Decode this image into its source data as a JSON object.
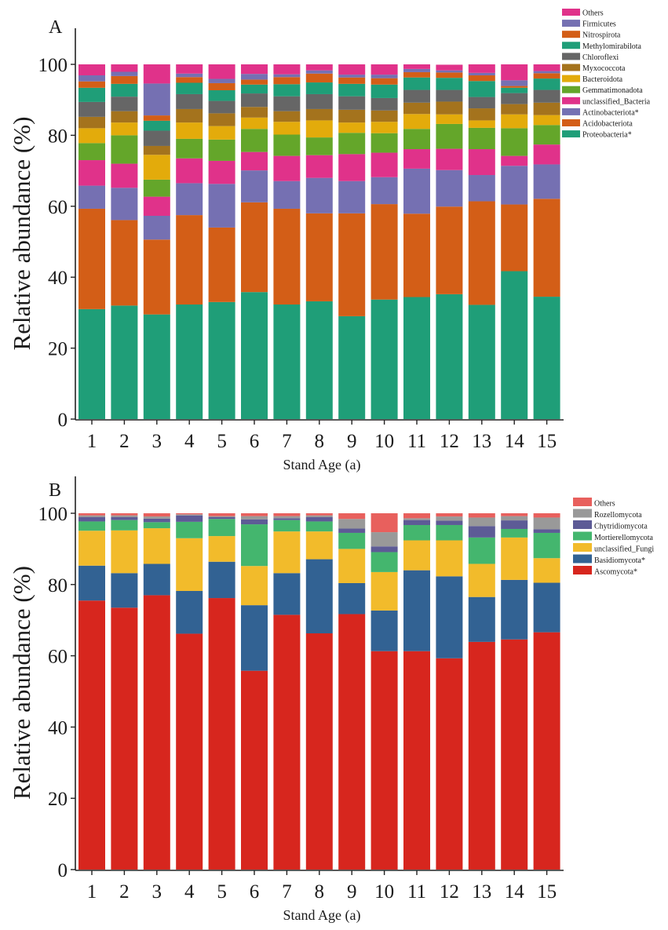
{
  "figure": {
    "panel_a_letter": "A",
    "panel_b_letter": "B"
  },
  "chart_data": [
    {
      "type": "bar",
      "stacked": true,
      "panel": "A",
      "title": "",
      "xlabel": "Stand Age (a)",
      "ylabel": "Relative abundance (%)",
      "ylim": [
        0,
        100
      ],
      "yticks": [
        0,
        20,
        40,
        60,
        80,
        100
      ],
      "grid": false,
      "legend_position": "top-right",
      "categories": [
        "1",
        "2",
        "3",
        "4",
        "5",
        "6",
        "7",
        "8",
        "9",
        "10",
        "11",
        "12",
        "13",
        "14",
        "15"
      ],
      "series": [
        {
          "name": "Proteobacteria*",
          "color": "#1f9e78",
          "values": [
            31.0,
            32.0,
            29.5,
            32.3,
            33.0,
            35.8,
            32.3,
            33.2,
            29.0,
            33.7,
            34.4,
            35.2,
            32.2,
            41.7,
            34.5
          ]
        },
        {
          "name": "Acidobacteriota",
          "color": "#d35e17",
          "values": [
            28.3,
            24.1,
            21.1,
            25.2,
            21.0,
            25.3,
            27.0,
            24.8,
            29.0,
            26.9,
            23.5,
            24.7,
            29.2,
            18.8,
            27.6
          ]
        },
        {
          "name": "Actinobacteriota*",
          "color": "#7570b2",
          "values": [
            6.5,
            9.1,
            6.7,
            9.0,
            12.3,
            9.0,
            7.8,
            10.0,
            9.1,
            7.6,
            12.7,
            10.3,
            7.4,
            10.9,
            9.7
          ]
        },
        {
          "name": "unclassified_Bacteria",
          "color": "#e0328a",
          "values": [
            7.2,
            6.8,
            5.4,
            7.0,
            6.5,
            5.2,
            7.1,
            6.4,
            7.6,
            6.9,
            5.5,
            6.0,
            7.3,
            2.8,
            5.6
          ]
        },
        {
          "name": "Gemmatimonadota",
          "color": "#64a62a",
          "values": [
            4.8,
            8.0,
            4.8,
            5.5,
            6.0,
            6.5,
            6.0,
            5.0,
            6.0,
            5.5,
            5.7,
            7.0,
            6.0,
            7.8,
            5.5
          ]
        },
        {
          "name": "Bacteroidota",
          "color": "#e3ab0b",
          "values": [
            4.2,
            3.6,
            7.0,
            4.6,
            3.8,
            3.2,
            3.6,
            4.8,
            2.9,
            3.2,
            4.2,
            2.7,
            2.1,
            3.9,
            2.8
          ]
        },
        {
          "name": "Myxococcota",
          "color": "#a4731d",
          "values": [
            3.2,
            3.2,
            2.5,
            3.8,
            3.6,
            3.0,
            3.0,
            3.2,
            3.6,
            3.2,
            3.2,
            3.6,
            3.4,
            2.9,
            3.5
          ]
        },
        {
          "name": "Chloroflexi",
          "color": "#666666",
          "values": [
            4.2,
            4.1,
            4.3,
            4.2,
            3.5,
            3.8,
            4.2,
            4.2,
            3.8,
            3.5,
            3.6,
            3.3,
            3.2,
            3.1,
            3.6
          ]
        },
        {
          "name": "Methylomirabilota",
          "color": "#1f9e78",
          "values": [
            4.0,
            3.6,
            2.8,
            3.2,
            3.0,
            2.5,
            3.4,
            3.3,
            3.5,
            3.8,
            3.5,
            3.4,
            4.5,
            1.5,
            3.2
          ]
        },
        {
          "name": "Nitrospirota",
          "color": "#d35e17",
          "values": [
            1.8,
            2.2,
            1.5,
            1.6,
            2.0,
            1.4,
            2.0,
            2.5,
            1.8,
            1.8,
            1.5,
            1.5,
            1.6,
            0.5,
            1.5
          ]
        },
        {
          "name": "Firmicutes",
          "color": "#7570b2",
          "values": [
            1.7,
            1.2,
            9.0,
            1.0,
            1.2,
            1.6,
            0.8,
            0.9,
            0.8,
            1.0,
            0.9,
            0.6,
            0.7,
            1.6,
            0.6
          ]
        },
        {
          "name": "Others",
          "color": "#e0328a",
          "values": [
            3.1,
            2.1,
            5.4,
            2.6,
            4.1,
            2.7,
            2.8,
            1.7,
            2.9,
            2.9,
            1.3,
            1.6,
            2.4,
            4.5,
            1.9
          ]
        }
      ]
    },
    {
      "type": "bar",
      "stacked": true,
      "panel": "B",
      "title": "",
      "xlabel": "Stand Age (a)",
      "ylabel": "Relative abundance (%)",
      "ylim": [
        0,
        100
      ],
      "yticks": [
        0,
        20,
        40,
        60,
        80,
        100
      ],
      "grid": false,
      "legend_position": "top-right",
      "categories": [
        "1",
        "2",
        "3",
        "4",
        "5",
        "6",
        "7",
        "8",
        "9",
        "10",
        "11",
        "12",
        "13",
        "14",
        "15"
      ],
      "series": [
        {
          "name": "Ascomycota*",
          "color": "#d7261e",
          "values": [
            75.5,
            73.5,
            77.0,
            66.2,
            76.2,
            55.8,
            71.5,
            66.3,
            71.7,
            61.3,
            61.3,
            59.3,
            63.9,
            64.6,
            66.6
          ]
        },
        {
          "name": "Basidiomycota*",
          "color": "#326293",
          "values": [
            9.8,
            9.7,
            8.8,
            12.0,
            10.2,
            18.4,
            11.7,
            20.8,
            8.7,
            11.4,
            22.7,
            23.0,
            12.6,
            16.7,
            13.9
          ]
        },
        {
          "name": "unclassified_Fungi",
          "color": "#f2bb2b",
          "values": [
            9.8,
            12.0,
            10.0,
            14.8,
            7.2,
            11.0,
            11.7,
            7.8,
            9.6,
            10.8,
            8.4,
            10.1,
            9.3,
            11.9,
            6.9
          ]
        },
        {
          "name": "Mortierellomycota",
          "color": "#44b66e",
          "values": [
            2.6,
            2.9,
            1.7,
            4.6,
            4.8,
            11.7,
            3.2,
            2.8,
            4.5,
            5.6,
            4.3,
            4.3,
            7.4,
            2.4,
            7.1
          ]
        },
        {
          "name": "Chytridiomycota",
          "color": "#5d5b96",
          "values": [
            1.2,
            0.8,
            1.0,
            1.8,
            0.5,
            1.4,
            0.5,
            1.2,
            1.2,
            1.6,
            1.4,
            1.2,
            3.2,
            2.4,
            1.0
          ]
        },
        {
          "name": "Rozellomycota",
          "color": "#999999",
          "values": [
            0.5,
            0.5,
            0.6,
            0.3,
            0.3,
            0.9,
            0.6,
            0.5,
            2.7,
            4.0,
            0.5,
            1.2,
            2.4,
            1.2,
            3.3
          ]
        },
        {
          "name": "Others",
          "color": "#e8605d",
          "values": [
            0.6,
            0.6,
            0.9,
            0.3,
            0.8,
            0.8,
            0.8,
            0.6,
            1.6,
            5.3,
            1.4,
            0.9,
            1.2,
            0.8,
            1.2
          ]
        }
      ]
    }
  ]
}
